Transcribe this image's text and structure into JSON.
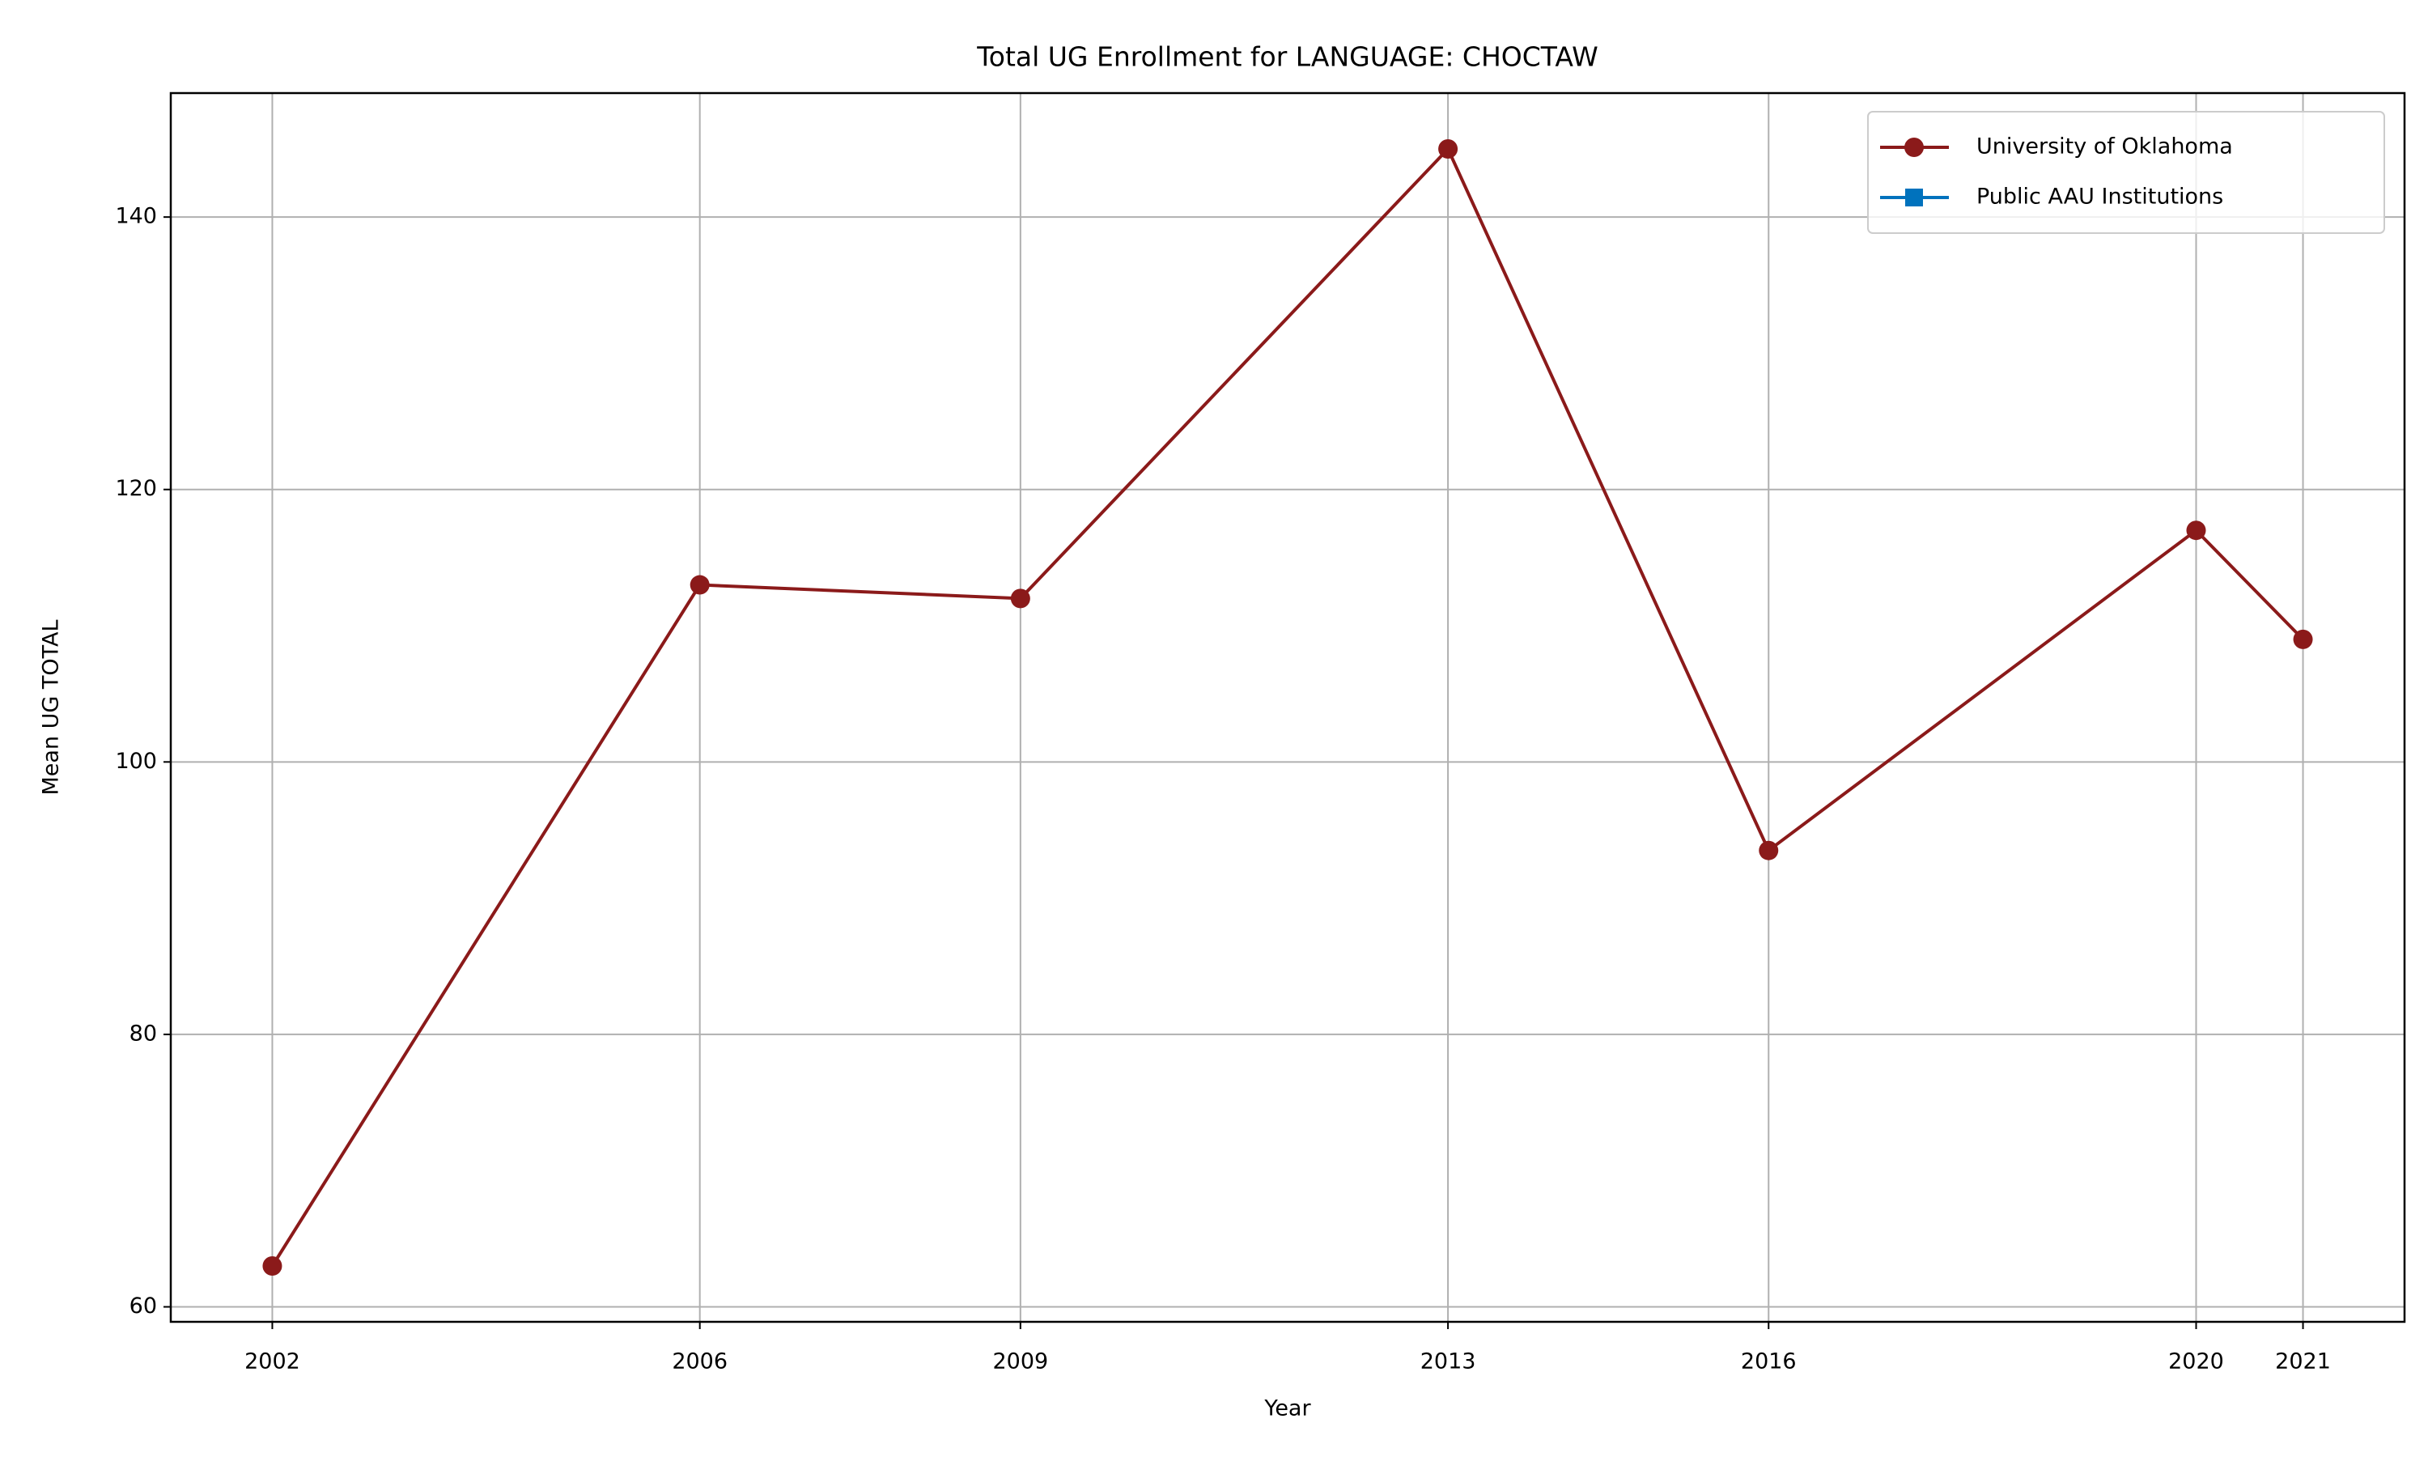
{
  "chart_data": {
    "type": "line",
    "title": "Total UG Enrollment for LANGUAGE: CHOCTAW",
    "x_label": "Year",
    "y_label": "Mean UG TOTAL",
    "x": [
      2002,
      2006,
      2009,
      2013,
      2016,
      2020,
      2021
    ],
    "series": [
      {
        "name": "University of Oklahoma",
        "color": "#8b1a1a",
        "marker": "circle",
        "values": [
          63,
          113,
          112,
          145,
          93.5,
          117,
          109
        ]
      },
      {
        "name": "Public AAU Institutions",
        "color": "#0072bd",
        "marker": "square",
        "values": [
          null,
          null,
          null,
          null,
          null,
          null,
          null
        ]
      }
    ],
    "xlim": [
      2001.05,
      2021.95
    ],
    "xticks": [
      2002,
      2006,
      2009,
      2013,
      2016,
      2020,
      2021
    ],
    "ylim": [
      58.9,
      149.1
    ],
    "yticks": [
      60,
      80,
      100,
      120,
      140
    ],
    "grid": true,
    "legend": "upper right"
  }
}
